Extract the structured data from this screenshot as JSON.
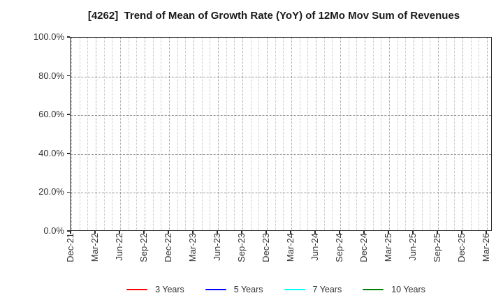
{
  "chart_data": {
    "type": "line",
    "title": "[4262]  Trend of Mean of Growth Rate (YoY) of 12Mo Mov Sum of Revenues",
    "x_tick_labels": [
      "Dec-21",
      "Mar-22",
      "Jun-22",
      "Sep-22",
      "Dec-22",
      "Mar-23",
      "Jun-23",
      "Sep-23",
      "Dec-23",
      "Mar-24",
      "Jun-24",
      "Sep-24",
      "Dec-24",
      "Mar-25",
      "Jun-25",
      "Sep-25",
      "Dec-25",
      "Mar-26"
    ],
    "x_minor_interval_months": 1,
    "y_ticks": [
      {
        "label": "0.0%",
        "value": 0
      },
      {
        "label": "20.0%",
        "value": 20
      },
      {
        "label": "40.0%",
        "value": 40
      },
      {
        "label": "60.0%",
        "value": 60
      },
      {
        "label": "80.0%",
        "value": 80
      },
      {
        "label": "100.0%",
        "value": 100
      }
    ],
    "ylim": [
      0,
      100
    ],
    "grid": "on",
    "legend_position": "bottom",
    "series": [
      {
        "name": "3 Years",
        "color": "#ff0000",
        "values": []
      },
      {
        "name": "5 Years",
        "color": "#0000ff",
        "values": []
      },
      {
        "name": "7 Years",
        "color": "#00ffff",
        "values": []
      },
      {
        "name": "10 Years",
        "color": "#008000",
        "values": []
      }
    ]
  }
}
